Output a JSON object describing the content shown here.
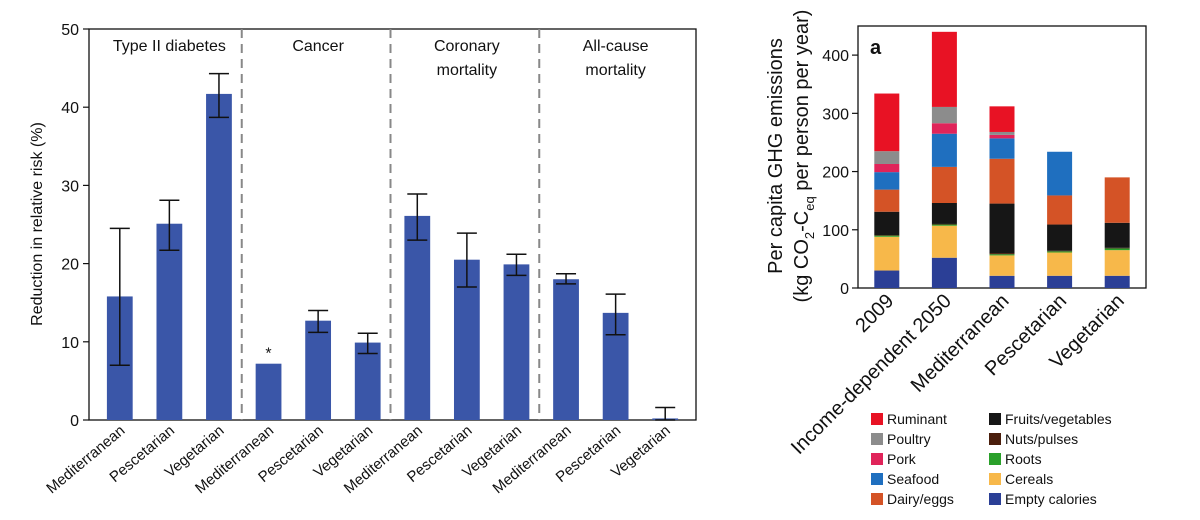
{
  "chart_data": [
    {
      "type": "bar",
      "ylabel": "Reduction in relative risk (%)",
      "ylim": [
        0,
        50
      ],
      "yticks": [
        0,
        10,
        20,
        30,
        40,
        50
      ],
      "grid": false,
      "bar_color": "#3a56a8",
      "groups": [
        {
          "title": [
            "Type II diabetes"
          ],
          "bars": [
            {
              "category": "Mediterranean",
              "value": 15.8,
              "error_low": 7.0,
              "error_high": 24.5
            },
            {
              "category": "Pescetarian",
              "value": 25.1,
              "error_low": 21.7,
              "error_high": 28.1
            },
            {
              "category": "Vegetarian",
              "value": 41.7,
              "error_low": 38.7,
              "error_high": 44.3
            }
          ]
        },
        {
          "title": [
            "Cancer"
          ],
          "bars": [
            {
              "category": "Mediterranean",
              "value": 7.2,
              "annotation": "*"
            },
            {
              "category": "Pescetarian",
              "value": 12.7,
              "error_low": 11.2,
              "error_high": 14.0
            },
            {
              "category": "Vegetarian",
              "value": 9.9,
              "error_low": 8.5,
              "error_high": 11.1
            }
          ]
        },
        {
          "title": [
            "Coronary",
            "mortality"
          ],
          "bars": [
            {
              "category": "Mediterranean",
              "value": 26.1,
              "error_low": 23.0,
              "error_high": 28.9
            },
            {
              "category": "Pescetarian",
              "value": 20.5,
              "error_low": 17.0,
              "error_high": 23.9
            },
            {
              "category": "Vegetarian",
              "value": 19.9,
              "error_low": 18.5,
              "error_high": 21.2
            }
          ]
        },
        {
          "title": [
            "All-cause",
            "mortality"
          ],
          "bars": [
            {
              "category": "Mediterranean",
              "value": 18.0,
              "error_low": 17.4,
              "error_high": 18.7
            },
            {
              "category": "Pescetarian",
              "value": 13.7,
              "error_low": 10.9,
              "error_high": 16.1
            },
            {
              "category": "Vegetarian",
              "value": 0.2,
              "error_low": 0,
              "error_high": 1.6
            }
          ]
        }
      ]
    },
    {
      "type": "bar",
      "stacked": true,
      "panel_label": "a",
      "ylabel_line1": "Per capita GHG emissions",
      "ylabel_line2_prefix": "(kg CO",
      "ylabel_line2_sub1": "2",
      "ylabel_line2_mid": "-C",
      "ylabel_line2_sub2": "eq",
      "ylabel_line2_suffix": " per person per year)",
      "ylim": [
        0,
        450
      ],
      "yticks": [
        0,
        100,
        200,
        300,
        400
      ],
      "grid": false,
      "legend_position": "bottom",
      "categories": [
        "2009",
        "Income-dependent 2050",
        "Mediterranean",
        "Pescetarian",
        "Vegetarian"
      ],
      "series": [
        {
          "name": "Empty calories",
          "color": "#2b3f96",
          "values": [
            30,
            52,
            21,
            21,
            21
          ]
        },
        {
          "name": "Cereals",
          "color": "#f7b84a",
          "values": [
            58,
            55,
            35,
            40,
            44
          ]
        },
        {
          "name": "Roots",
          "color": "#2aa02a",
          "values": [
            2,
            2,
            2,
            2,
            3
          ]
        },
        {
          "name": "Nuts/pulses",
          "color": "#4a1e0c",
          "values": [
            1,
            1,
            2,
            1,
            1
          ]
        },
        {
          "name": "Fruits/vegetables",
          "color": "#161616",
          "values": [
            40,
            36,
            85,
            45,
            43
          ]
        },
        {
          "name": "Dairy/eggs",
          "color": "#d45326",
          "values": [
            38,
            62,
            77,
            50,
            78
          ]
        },
        {
          "name": "Seafood",
          "color": "#1f6fbf",
          "values": [
            30,
            57,
            35,
            75,
            0
          ]
        },
        {
          "name": "Pork",
          "color": "#e0245a",
          "values": [
            14,
            18,
            6,
            0,
            0
          ]
        },
        {
          "name": "Poultry",
          "color": "#8c8c8c",
          "values": [
            22,
            28,
            5,
            0,
            0
          ]
        },
        {
          "name": "Ruminant",
          "color": "#e81224",
          "values": [
            99,
            129,
            44,
            0,
            0
          ]
        }
      ],
      "legend": [
        {
          "name": "Ruminant",
          "color": "#e81224"
        },
        {
          "name": "Fruits/vegetables",
          "color": "#161616"
        },
        {
          "name": "Poultry",
          "color": "#8c8c8c"
        },
        {
          "name": "Nuts/pulses",
          "color": "#4a1e0c"
        },
        {
          "name": "Pork",
          "color": "#e0245a"
        },
        {
          "name": "Roots",
          "color": "#2aa02a"
        },
        {
          "name": "Seafood",
          "color": "#1f6fbf"
        },
        {
          "name": "Cereals",
          "color": "#f7b84a"
        },
        {
          "name": "Dairy/eggs",
          "color": "#d45326"
        },
        {
          "name": "Empty calories",
          "color": "#2b3f96"
        }
      ]
    }
  ]
}
